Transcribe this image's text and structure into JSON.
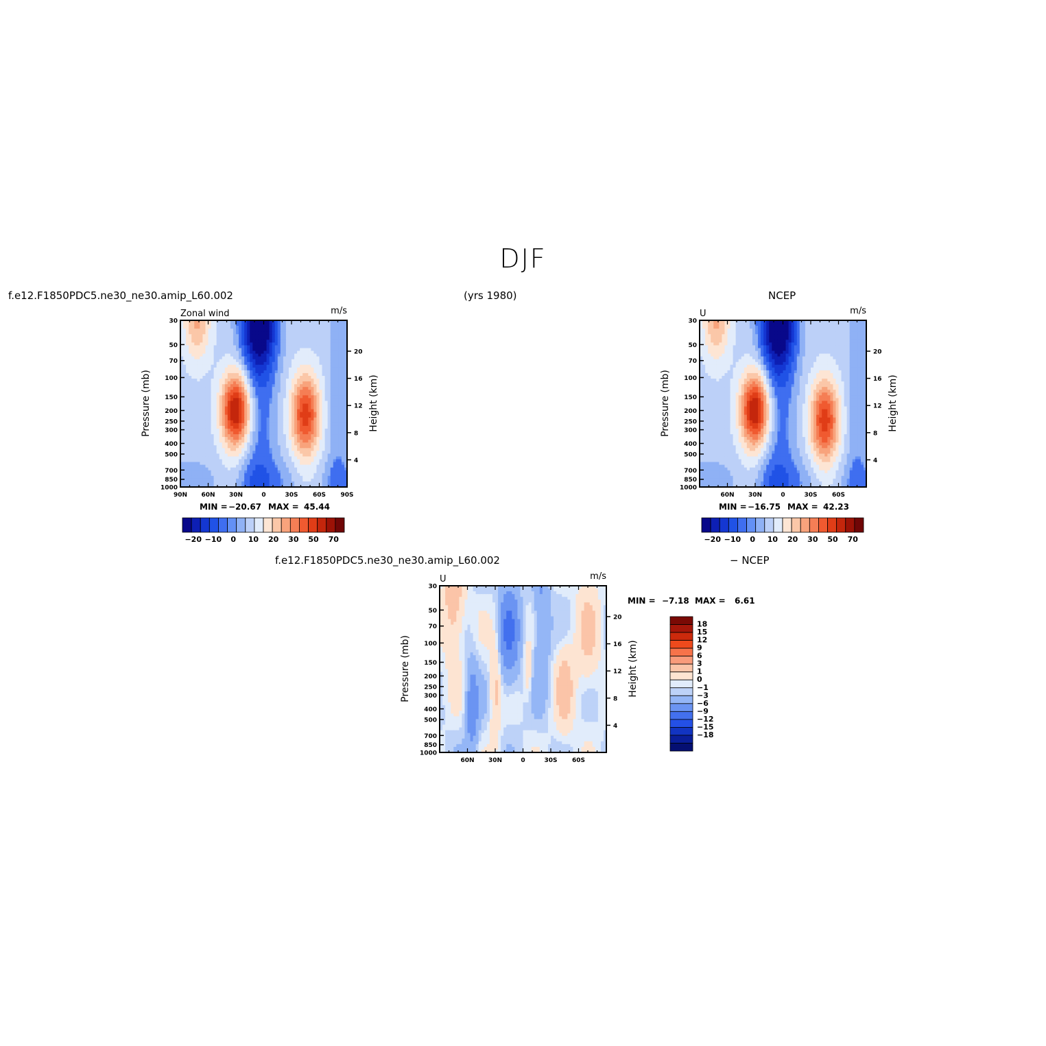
{
  "title": "DJF",
  "headers": {
    "model_case": "f.e12.F1850PDC5.ne30_ne30.amip_L60.002",
    "years": "(yrs 1980)",
    "obs_name": "NCEP",
    "diff_case": "f.e12.F1850PDC5.ne30_ne30.amip_L60.002",
    "diff_minus": "− NCEP"
  },
  "chart_data": [
    {
      "type": "heatmap",
      "panel": "model",
      "corner_label_left": "Zonal wind",
      "corner_label_right": "m/s",
      "ylabel": "Pressure  (mb)",
      "y2label": "Height  (km)",
      "x_ticks": [
        "90N",
        "60N",
        "30N",
        "0",
        "30S",
        "60S",
        "90S"
      ],
      "x_tick_values": [
        90,
        60,
        30,
        0,
        -30,
        -60,
        -90
      ],
      "x_range": [
        90,
        -90
      ],
      "y_ticks": [
        30,
        50,
        70,
        100,
        150,
        200,
        250,
        300,
        400,
        500,
        700,
        850,
        1000
      ],
      "y_range": [
        30,
        1000
      ],
      "y_scale": "log",
      "height_ticks": [
        4,
        8,
        12,
        16,
        20
      ],
      "min_label": "MIN =",
      "min_value": "−20.67",
      "max_label": "MAX =",
      "max_value": "45.44",
      "colorbar_labels": [
        "−20",
        "−10",
        "0",
        "10",
        "20",
        "30",
        "50",
        "70"
      ],
      "jets": [
        {
          "lat": 30,
          "p": 200,
          "speed": 45
        },
        {
          "lat": -45,
          "p": 220,
          "speed": 35
        }
      ]
    },
    {
      "type": "heatmap",
      "panel": "obs",
      "corner_label_left": "U",
      "corner_label_right": "m/s",
      "ylabel": "Pressure  (mb)",
      "y2label": "Height  (km)",
      "x_ticks": [
        "60N",
        "30N",
        "0",
        "30S",
        "60S"
      ],
      "x_tick_values": [
        60,
        30,
        0,
        -30,
        -60
      ],
      "x_range": [
        90,
        -90
      ],
      "y_ticks": [
        30,
        50,
        70,
        100,
        150,
        200,
        250,
        300,
        400,
        500,
        700,
        850,
        1000
      ],
      "y_range": [
        30,
        1000
      ],
      "y_scale": "log",
      "height_ticks": [
        4,
        8,
        12,
        16,
        20
      ],
      "min_label": "MIN =",
      "min_value": "−16.75",
      "max_label": "MAX =",
      "max_value": "42.23",
      "colorbar_labels": [
        "−20",
        "−10",
        "0",
        "10",
        "20",
        "30",
        "50",
        "70"
      ],
      "jets": [
        {
          "lat": 30,
          "p": 200,
          "speed": 42
        },
        {
          "lat": -45,
          "p": 250,
          "speed": 30
        }
      ]
    },
    {
      "type": "heatmap",
      "panel": "difference",
      "corner_label_left": "U",
      "corner_label_right": "m/s",
      "ylabel": "Pressure  (mb)",
      "y2label": "Height  (km)",
      "x_ticks": [
        "60N",
        "30N",
        "0",
        "30S",
        "60S"
      ],
      "x_tick_values": [
        60,
        30,
        0,
        -30,
        -60
      ],
      "x_range": [
        90,
        -90
      ],
      "y_ticks": [
        30,
        50,
        70,
        100,
        150,
        200,
        250,
        300,
        400,
        500,
        700,
        850,
        1000
      ],
      "y_range": [
        30,
        1000
      ],
      "y_scale": "log",
      "height_ticks": [
        4,
        8,
        12,
        16,
        20
      ],
      "min_label": "MIN =",
      "min_value": "−7.18",
      "max_label": "MAX =",
      "max_value": "6.61",
      "colorbar_labels": [
        "18",
        "15",
        "12",
        "9",
        "6",
        "3",
        "1",
        "0",
        "−1",
        "−3",
        "−6",
        "−9",
        "−12",
        "−15",
        "−18"
      ]
    }
  ],
  "colors": {
    "mean_scale": [
      "#08088a",
      "#0d1fb4",
      "#1437d2",
      "#2052e6",
      "#3f6ef0",
      "#6390f5",
      "#8fb1f5",
      "#bcd0f8",
      "#e2ecfb",
      "#fde5d4",
      "#fbc7a8",
      "#f8a37c",
      "#f57e55",
      "#f05a30",
      "#e03d17",
      "#c4260c",
      "#9c1206",
      "#700606"
    ],
    "diff_scale": [
      "#7a0a05",
      "#a5170a",
      "#cc2a0c",
      "#ee4a1c",
      "#f7734a",
      "#f99b7b",
      "#fbc4a8",
      "#fde4d2",
      "#e1ecfb",
      "#bdd2f8",
      "#94b6f6",
      "#6b94f2",
      "#4370ee",
      "#2450e6",
      "#1234c2",
      "#0a1e9a",
      "#050f72"
    ]
  }
}
